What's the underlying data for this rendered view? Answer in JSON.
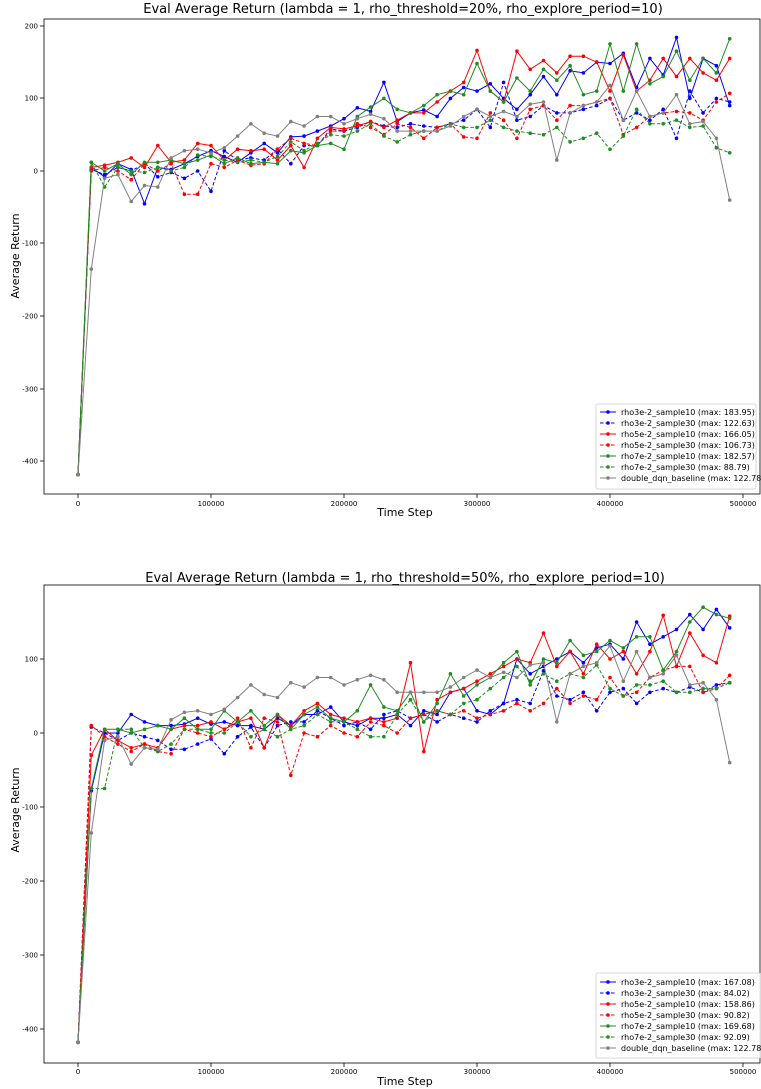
{
  "chart_data": [
    {
      "type": "line",
      "title": "Eval Average Return (lambda = 1, rho_threshold=20%, rho_explore_period=10)",
      "xlabel": "Time Step",
      "ylabel": "Average Return",
      "xlim": [
        -25000,
        510000
      ],
      "ylim": [
        -445,
        212
      ],
      "xticks": [
        0,
        100000,
        200000,
        300000,
        400000,
        500000
      ],
      "yticks": [
        -400,
        -300,
        -200,
        -100,
        0,
        100,
        200
      ],
      "grid": false,
      "legend_position": "lower right",
      "x": [
        0,
        10000,
        20000,
        30000,
        40000,
        50000,
        60000,
        70000,
        80000,
        90000,
        100000,
        110000,
        120000,
        130000,
        140000,
        150000,
        160000,
        170000,
        180000,
        190000,
        200000,
        210000,
        220000,
        230000,
        240000,
        250000,
        260000,
        270000,
        280000,
        290000,
        300000,
        310000,
        320000,
        330000,
        340000,
        350000,
        360000,
        370000,
        380000,
        390000,
        400000,
        410000,
        420000,
        430000,
        440000,
        450000,
        460000,
        470000,
        480000,
        490000
      ],
      "series": [
        {
          "name": "rho3e-2_sample10",
          "label": "rho3e-2_sample10  (max: 183.95)",
          "color": "#0000ff",
          "dashed": false,
          "values": [
            -418,
            5,
            -8,
            10,
            2,
            -45,
            5,
            2,
            10,
            20,
            28,
            20,
            12,
            25,
            38,
            25,
            47,
            48,
            55,
            62,
            72,
            87,
            82,
            122,
            68,
            80,
            84,
            75,
            100,
            115,
            110,
            120,
            100,
            85,
            105,
            130,
            105,
            138,
            135,
            150,
            148,
            162,
            115,
            155,
            132,
            184,
            100,
            155,
            145,
            90
          ]
        },
        {
          "name": "rho3e-2_sample30",
          "label": "rho3e-2_sample30  (max: 122.63)",
          "color": "#0000ff",
          "dashed": true,
          "values": [
            -418,
            2,
            -5,
            5,
            0,
            10,
            -8,
            -2,
            -10,
            0,
            -28,
            28,
            15,
            18,
            15,
            30,
            10,
            35,
            35,
            58,
            55,
            60,
            68,
            62,
            60,
            65,
            62,
            60,
            65,
            70,
            85,
            60,
            122,
            70,
            75,
            90,
            80,
            80,
            85,
            90,
            100,
            70,
            80,
            70,
            85,
            45,
            110,
            80,
            100,
            95
          ]
        },
        {
          "name": "rho5e-2_sample10",
          "label": "rho5e-2_sample10  (max: 166.05)",
          "color": "#ff0000",
          "dashed": false,
          "values": [
            -418,
            5,
            8,
            12,
            18,
            5,
            35,
            12,
            15,
            38,
            35,
            15,
            30,
            28,
            30,
            15,
            35,
            5,
            45,
            60,
            58,
            62,
            68,
            60,
            70,
            80,
            80,
            95,
            110,
            122,
            166,
            110,
            95,
            165,
            140,
            152,
            135,
            158,
            158,
            150,
            110,
            160,
            110,
            125,
            155,
            130,
            155,
            135,
            125,
            155
          ]
        },
        {
          "name": "rho5e-2_sample30",
          "label": "rho5e-2_sample30  (max: 106.73)",
          "color": "#ff0000",
          "dashed": true,
          "values": [
            -418,
            0,
            5,
            0,
            -12,
            10,
            0,
            10,
            -32,
            -32,
            10,
            5,
            15,
            8,
            10,
            30,
            45,
            38,
            35,
            55,
            55,
            65,
            60,
            50,
            65,
            60,
            45,
            60,
            65,
            47,
            45,
            80,
            70,
            45,
            85,
            90,
            70,
            90,
            90,
            95,
            100,
            50,
            60,
            75,
            80,
            82,
            80,
            70,
            95,
            107
          ]
        },
        {
          "name": "rho7e-2_sample10",
          "label": "rho7e-2_sample10  (max: 182.57)",
          "color": "#228b22",
          "dashed": false,
          "values": [
            -418,
            12,
            0,
            10,
            -5,
            12,
            12,
            15,
            10,
            15,
            22,
            10,
            18,
            10,
            12,
            10,
            28,
            25,
            35,
            38,
            30,
            75,
            88,
            100,
            85,
            80,
            90,
            105,
            110,
            105,
            148,
            110,
            95,
            128,
            110,
            140,
            125,
            145,
            105,
            110,
            175,
            110,
            175,
            120,
            130,
            165,
            125,
            155,
            135,
            182
          ]
        },
        {
          "name": "rho7e-2_sample30",
          "label": "rho7e-2_sample30  (max: 88.79)",
          "color": "#228b22",
          "dashed": true,
          "values": [
            -418,
            12,
            -22,
            5,
            0,
            -2,
            5,
            0,
            5,
            22,
            20,
            15,
            12,
            15,
            12,
            20,
            40,
            28,
            38,
            50,
            48,
            55,
            65,
            48,
            40,
            50,
            55,
            55,
            65,
            60,
            60,
            70,
            60,
            55,
            52,
            50,
            60,
            40,
            45,
            52,
            30,
            48,
            85,
            65,
            65,
            70,
            60,
            62,
            32,
            25
          ]
        },
        {
          "name": "double_dqn_baseline",
          "label": "double_dqn_baseline  (max: 122.78)",
          "color": "#808080",
          "dashed": false,
          "values": [
            -418,
            -135,
            -10,
            -5,
            -42,
            -20,
            -22,
            18,
            28,
            30,
            25,
            32,
            48,
            65,
            52,
            48,
            68,
            62,
            75,
            75,
            65,
            72,
            78,
            72,
            55,
            55,
            55,
            55,
            62,
            75,
            85,
            75,
            82,
            75,
            92,
            95,
            15,
            80,
            90,
            95,
            118,
            70,
            110,
            75,
            80,
            105,
            65,
            68,
            45,
            -40
          ]
        }
      ]
    },
    {
      "type": "line",
      "title": "Eval Average Return (lambda = 1, rho_threshold=50%, rho_explore_period=10)",
      "xlabel": "Time Step",
      "ylabel": "Average Return",
      "xlim": [
        -25000,
        510000
      ],
      "ylim": [
        -445,
        200
      ],
      "xticks": [
        0,
        100000,
        200000,
        300000,
        400000,
        500000
      ],
      "yticks": [
        -400,
        -300,
        -200,
        -100,
        0,
        100
      ],
      "grid": false,
      "legend_position": "lower right",
      "x": [
        0,
        10000,
        20000,
        30000,
        40000,
        50000,
        60000,
        70000,
        80000,
        90000,
        100000,
        110000,
        120000,
        130000,
        140000,
        150000,
        160000,
        170000,
        180000,
        190000,
        200000,
        210000,
        220000,
        230000,
        240000,
        250000,
        260000,
        270000,
        280000,
        290000,
        300000,
        310000,
        320000,
        330000,
        340000,
        350000,
        360000,
        370000,
        380000,
        390000,
        400000,
        410000,
        420000,
        430000,
        440000,
        450000,
        460000,
        470000,
        480000,
        490000
      ],
      "series": [
        {
          "name": "rho3e-2_sample10",
          "label": "rho3e-2_sample10  (max: 167.08)",
          "color": "#0000ff",
          "dashed": false,
          "values": [
            -418,
            -78,
            0,
            0,
            25,
            15,
            10,
            10,
            12,
            20,
            12,
            15,
            10,
            10,
            5,
            20,
            10,
            25,
            25,
            35,
            15,
            10,
            20,
            20,
            25,
            10,
            30,
            25,
            55,
            60,
            30,
            25,
            40,
            100,
            80,
            90,
            100,
            110,
            95,
            115,
            120,
            100,
            150,
            120,
            130,
            140,
            160,
            140,
            167,
            142
          ]
        },
        {
          "name": "rho3e-2_sample30",
          "label": "rho3e-2_sample30  (max: 84.02)",
          "color": "#0000ff",
          "dashed": true,
          "values": [
            -418,
            8,
            0,
            -10,
            0,
            -5,
            -10,
            -22,
            -22,
            -15,
            -8,
            -28,
            -5,
            8,
            -20,
            10,
            15,
            15,
            30,
            20,
            10,
            15,
            5,
            25,
            30,
            20,
            25,
            15,
            25,
            20,
            15,
            30,
            40,
            45,
            40,
            84,
            50,
            45,
            55,
            30,
            55,
            60,
            40,
            55,
            60,
            55,
            62,
            55,
            65,
            68
          ]
        },
        {
          "name": "rho5e-2_sample10",
          "label": "rho5e-2_sample10  (max: 158.86)",
          "color": "#ff0000",
          "dashed": false,
          "values": [
            -418,
            -30,
            5,
            -10,
            -20,
            -15,
            -20,
            5,
            10,
            10,
            15,
            5,
            15,
            20,
            -20,
            25,
            10,
            30,
            40,
            25,
            20,
            15,
            20,
            15,
            20,
            95,
            -25,
            45,
            55,
            60,
            70,
            80,
            90,
            100,
            95,
            135,
            90,
            110,
            80,
            120,
            100,
            110,
            80,
            110,
            159,
            90,
            135,
            105,
            95,
            158
          ]
        },
        {
          "name": "rho5e-2_sample30",
          "label": "rho5e-2_sample30  (max: 90.82)",
          "color": "#ff0000",
          "dashed": true,
          "values": [
            -418,
            10,
            -5,
            -15,
            -25,
            -15,
            -25,
            -28,
            5,
            0,
            -5,
            5,
            20,
            -20,
            20,
            15,
            -57,
            0,
            -5,
            10,
            0,
            -5,
            15,
            10,
            0,
            20,
            25,
            30,
            25,
            30,
            20,
            25,
            30,
            40,
            30,
            40,
            60,
            40,
            50,
            45,
            75,
            50,
            55,
            75,
            85,
            90,
            90,
            55,
            60,
            78
          ]
        },
        {
          "name": "rho7e-2_sample10",
          "label": "rho7e-2_sample10  (max: 169.68)",
          "color": "#228b22",
          "dashed": false,
          "values": [
            -418,
            -75,
            5,
            5,
            0,
            5,
            10,
            5,
            20,
            5,
            5,
            30,
            15,
            30,
            10,
            25,
            5,
            25,
            35,
            20,
            15,
            30,
            65,
            35,
            30,
            55,
            15,
            40,
            80,
            50,
            65,
            75,
            95,
            110,
            65,
            100,
            95,
            125,
            105,
            110,
            125,
            115,
            130,
            130,
            85,
            110,
            150,
            170,
            160,
            155
          ]
        },
        {
          "name": "rho7e-2_sample30",
          "label": "rho7e-2_sample30  (max: 92.09)",
          "color": "#228b22",
          "dashed": true,
          "values": [
            -418,
            -75,
            -75,
            5,
            5,
            -20,
            -25,
            -15,
            5,
            5,
            0,
            0,
            15,
            -5,
            5,
            -5,
            5,
            10,
            25,
            15,
            15,
            5,
            -5,
            -5,
            25,
            45,
            15,
            30,
            25,
            40,
            45,
            60,
            75,
            90,
            70,
            80,
            70,
            80,
            75,
            92,
            60,
            50,
            65,
            65,
            70,
            55,
            55,
            60,
            60,
            68
          ]
        },
        {
          "name": "double_dqn_baseline",
          "label": "double_dqn_baseline  (max: 122.78)",
          "color": "#808080",
          "dashed": false,
          "values": [
            -418,
            -135,
            -10,
            -5,
            -42,
            -20,
            -22,
            18,
            28,
            30,
            25,
            32,
            48,
            65,
            52,
            48,
            68,
            62,
            75,
            75,
            65,
            72,
            78,
            72,
            55,
            55,
            55,
            55,
            62,
            75,
            85,
            75,
            82,
            75,
            92,
            95,
            15,
            80,
            90,
            95,
            118,
            70,
            110,
            75,
            80,
            105,
            65,
            68,
            45,
            -40
          ]
        }
      ]
    }
  ]
}
